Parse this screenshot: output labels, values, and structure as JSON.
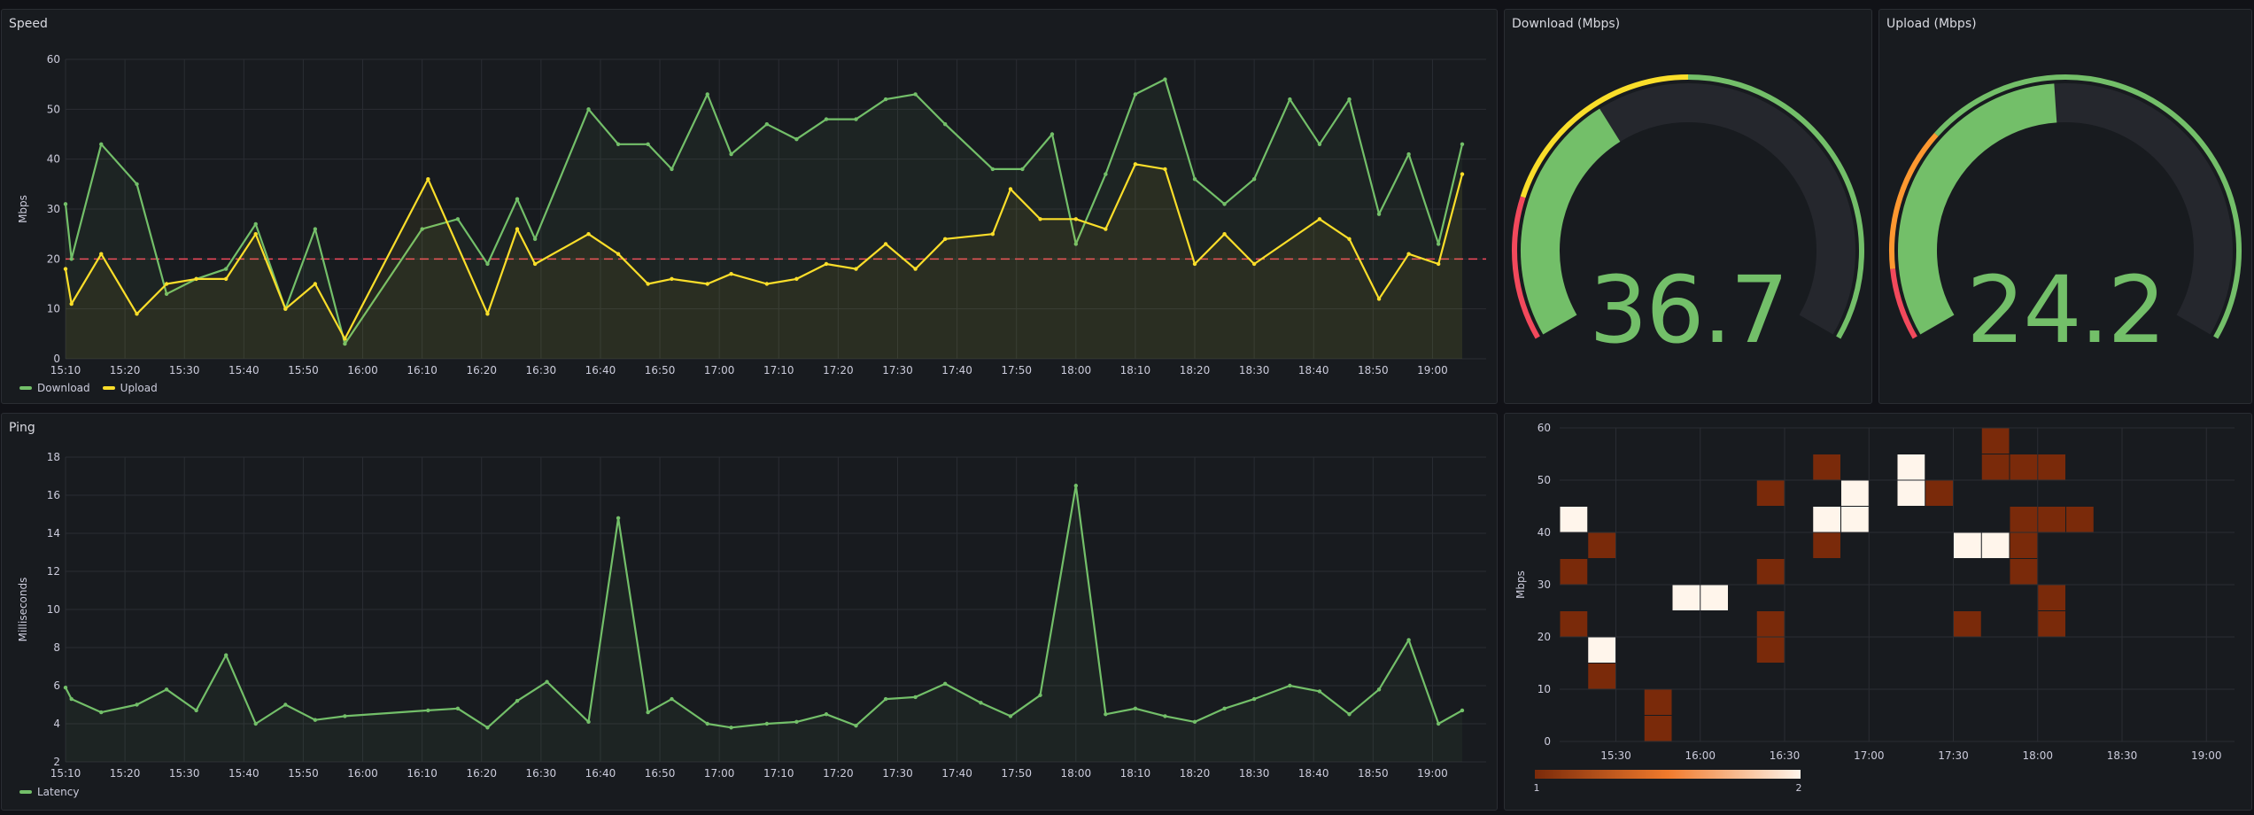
{
  "colors": {
    "download": "#73bf69",
    "upload": "#fade2a",
    "latency": "#73bf69",
    "threshold": "#f2495c",
    "gauge_red": "#f2495c",
    "gauge_yellow": "#fade2a",
    "gauge_orange": "#ff9830",
    "gauge_green": "#73bf69",
    "gauge_track": "#25272d",
    "grid": "#2a2d33",
    "axis_text": "#ccccdc"
  },
  "panels": {
    "speed": {
      "title": "Speed",
      "ylabel": "Mbps",
      "legend": [
        {
          "name": "Download",
          "color": "#73bf69"
        },
        {
          "name": "Upload",
          "color": "#fade2a"
        }
      ]
    },
    "download_gauge": {
      "title": "Download (Mbps)",
      "value": "36.7"
    },
    "upload_gauge": {
      "title": "Upload (Mbps)",
      "value": "24.2"
    },
    "ping": {
      "title": "Ping",
      "ylabel": "Milliseconds",
      "legend": [
        {
          "name": "Latency",
          "color": "#73bf69"
        }
      ]
    },
    "heatmap": {
      "title": "",
      "ylabel": "Mbps",
      "scale_min": "1",
      "scale_max": "2"
    }
  },
  "chart_data": [
    {
      "id": "speed",
      "type": "line",
      "title": "Speed",
      "ylabel": "Mbps",
      "ylim": [
        0,
        60
      ],
      "yticks": [
        0,
        10,
        20,
        30,
        40,
        50,
        60
      ],
      "xlim": [
        "15:10",
        "19:05"
      ],
      "xticks": [
        "15:10",
        "15:20",
        "15:30",
        "15:40",
        "15:50",
        "16:00",
        "16:10",
        "16:20",
        "16:30",
        "16:40",
        "16:50",
        "17:00",
        "17:10",
        "17:20",
        "17:30",
        "17:40",
        "17:50",
        "18:00",
        "18:10",
        "18:20",
        "18:30",
        "18:40",
        "18:50",
        "19:00"
      ],
      "threshold": 20,
      "series": [
        {
          "name": "Download",
          "x": [
            "15:10",
            "15:11",
            "15:16",
            "15:22",
            "15:27",
            "15:32",
            "15:37",
            "15:42",
            "15:47",
            "15:52",
            "15:57",
            "16:10",
            "16:16",
            "16:21",
            "16:26",
            "16:29",
            "16:38",
            "16:43",
            "16:48",
            "16:52",
            "16:58",
            "17:02",
            "17:08",
            "17:13",
            "17:18",
            "17:23",
            "17:28",
            "17:33",
            "17:38",
            "17:46",
            "17:51",
            "17:56",
            "18:00",
            "18:05",
            "18:10",
            "18:15",
            "18:20",
            "18:25",
            "18:30",
            "18:36",
            "18:41",
            "18:46",
            "18:51",
            "18:56",
            "19:01",
            "19:05"
          ],
          "y": [
            31,
            20,
            43,
            35,
            13,
            16,
            18,
            27,
            10,
            26,
            3,
            26,
            28,
            19,
            32,
            24,
            50,
            43,
            43,
            38,
            53,
            41,
            47,
            44,
            48,
            48,
            52,
            53,
            47,
            38,
            38,
            45,
            23,
            37,
            53,
            56,
            36,
            31,
            36,
            52,
            43,
            52,
            29,
            41,
            23,
            43
          ]
        },
        {
          "name": "Upload",
          "x": [
            "15:10",
            "15:11",
            "15:16",
            "15:22",
            "15:27",
            "15:32",
            "15:37",
            "15:42",
            "15:47",
            "15:52",
            "15:57",
            "16:11",
            "16:21",
            "16:26",
            "16:29",
            "16:38",
            "16:43",
            "16:48",
            "16:52",
            "16:58",
            "17:02",
            "17:08",
            "17:13",
            "17:18",
            "17:23",
            "17:28",
            "17:33",
            "17:38",
            "17:46",
            "17:49",
            "17:54",
            "18:00",
            "18:05",
            "18:10",
            "18:15",
            "18:20",
            "18:25",
            "18:30",
            "18:41",
            "18:46",
            "18:51",
            "18:56",
            "19:01",
            "19:05"
          ],
          "y": [
            18,
            11,
            21,
            9,
            15,
            16,
            16,
            25,
            10,
            15,
            4,
            36,
            9,
            26,
            19,
            25,
            21,
            15,
            16,
            15,
            17,
            15,
            16,
            19,
            18,
            23,
            18,
            24,
            25,
            34,
            28,
            28,
            26,
            39,
            38,
            19,
            25,
            19,
            28,
            24,
            12,
            21,
            19,
            37
          ]
        }
      ]
    },
    {
      "id": "download_gauge",
      "type": "gauge",
      "title": "Download (Mbps)",
      "value": 36.7,
      "min": 0,
      "max": 100,
      "thresholds": [
        {
          "value": 0,
          "color": "#f2495c"
        },
        {
          "value": 20,
          "color": "#fade2a"
        },
        {
          "value": 50,
          "color": "#73bf69"
        }
      ]
    },
    {
      "id": "upload_gauge",
      "type": "gauge",
      "title": "Upload (Mbps)",
      "value": 24.2,
      "min": 0,
      "max": 50,
      "thresholds": [
        {
          "value": 0,
          "color": "#f2495c"
        },
        {
          "value": 5,
          "color": "#ff9830"
        },
        {
          "value": 15,
          "color": "#73bf69"
        }
      ]
    },
    {
      "id": "ping",
      "type": "line",
      "title": "Ping",
      "ylabel": "Milliseconds",
      "ylim": [
        2,
        18
      ],
      "yticks": [
        2,
        4,
        6,
        8,
        10,
        12,
        14,
        16,
        18
      ],
      "xlim": [
        "15:10",
        "19:05"
      ],
      "xticks": [
        "15:10",
        "15:20",
        "15:30",
        "15:40",
        "15:50",
        "16:00",
        "16:10",
        "16:20",
        "16:30",
        "16:40",
        "16:50",
        "17:00",
        "17:10",
        "17:20",
        "17:30",
        "17:40",
        "17:50",
        "18:00",
        "18:10",
        "18:20",
        "18:30",
        "18:40",
        "18:50",
        "19:00"
      ],
      "series": [
        {
          "name": "Latency",
          "x": [
            "15:10",
            "15:11",
            "15:16",
            "15:22",
            "15:27",
            "15:32",
            "15:37",
            "15:42",
            "15:47",
            "15:52",
            "15:57",
            "16:11",
            "16:16",
            "16:21",
            "16:26",
            "16:31",
            "16:38",
            "16:43",
            "16:48",
            "16:52",
            "16:58",
            "17:02",
            "17:08",
            "17:13",
            "17:18",
            "17:23",
            "17:28",
            "17:33",
            "17:38",
            "17:44",
            "17:49",
            "17:54",
            "18:00",
            "18:05",
            "18:10",
            "18:15",
            "18:20",
            "18:25",
            "18:30",
            "18:36",
            "18:41",
            "18:46",
            "18:51",
            "18:56",
            "19:01",
            "19:05"
          ],
          "y": [
            5.9,
            5.3,
            4.6,
            5.0,
            5.8,
            4.7,
            7.6,
            4.0,
            5.0,
            4.2,
            4.4,
            4.7,
            4.8,
            3.8,
            5.2,
            6.2,
            4.1,
            14.8,
            4.6,
            5.3,
            4.0,
            3.8,
            4.0,
            4.1,
            4.5,
            3.9,
            5.3,
            5.4,
            6.1,
            5.1,
            4.4,
            5.5,
            16.5,
            4.5,
            4.8,
            4.4,
            4.1,
            4.8,
            5.3,
            6.0,
            5.7,
            4.5,
            5.8,
            8.4,
            4.0,
            4.7
          ]
        }
      ]
    },
    {
      "id": "heatmap",
      "type": "heatmap",
      "ylabel": "Mbps",
      "ylim": [
        0,
        60
      ],
      "yticks": [
        0,
        10,
        20,
        30,
        40,
        50,
        60
      ],
      "xticks": [
        "15:30",
        "16:00",
        "16:30",
        "17:00",
        "17:30",
        "18:00",
        "18:30",
        "19:00"
      ],
      "xlim": [
        "15:10",
        "19:10"
      ],
      "bucket_minutes": 10,
      "bucket_mbps": 5,
      "color_scale": {
        "min": 1,
        "max": 2,
        "min_color": "#7a2a0a",
        "max_color": "#fff5eb"
      },
      "cells": [
        {
          "x": "15:10",
          "y": 40,
          "count": 2
        },
        {
          "x": "15:10",
          "y": 30,
          "count": 1
        },
        {
          "x": "15:10",
          "y": 20,
          "count": 1
        },
        {
          "x": "15:20",
          "y": 35,
          "count": 1
        },
        {
          "x": "15:20",
          "y": 15,
          "count": 2
        },
        {
          "x": "15:20",
          "y": 10,
          "count": 1
        },
        {
          "x": "15:40",
          "y": 5,
          "count": 1
        },
        {
          "x": "15:40",
          "y": 0,
          "count": 1
        },
        {
          "x": "15:50",
          "y": 25,
          "count": 2
        },
        {
          "x": "16:00",
          "y": 25,
          "count": 2
        },
        {
          "x": "16:20",
          "y": 45,
          "count": 1
        },
        {
          "x": "16:20",
          "y": 30,
          "count": 1
        },
        {
          "x": "16:20",
          "y": 20,
          "count": 1
        },
        {
          "x": "16:20",
          "y": 15,
          "count": 1
        },
        {
          "x": "16:40",
          "y": 50,
          "count": 1
        },
        {
          "x": "16:40",
          "y": 40,
          "count": 2
        },
        {
          "x": "16:40",
          "y": 35,
          "count": 1
        },
        {
          "x": "16:50",
          "y": 45,
          "count": 2
        },
        {
          "x": "16:50",
          "y": 40,
          "count": 2
        },
        {
          "x": "17:10",
          "y": 50,
          "count": 2
        },
        {
          "x": "17:10",
          "y": 45,
          "count": 2
        },
        {
          "x": "17:20",
          "y": 45,
          "count": 1
        },
        {
          "x": "17:30",
          "y": 35,
          "count": 2
        },
        {
          "x": "17:30",
          "y": 20,
          "count": 1
        },
        {
          "x": "17:40",
          "y": 55,
          "count": 1
        },
        {
          "x": "17:40",
          "y": 50,
          "count": 1
        },
        {
          "x": "17:40",
          "y": 35,
          "count": 2
        },
        {
          "x": "17:50",
          "y": 50,
          "count": 1
        },
        {
          "x": "17:50",
          "y": 40,
          "count": 1
        },
        {
          "x": "17:50",
          "y": 35,
          "count": 1
        },
        {
          "x": "17:50",
          "y": 30,
          "count": 1
        },
        {
          "x": "18:00",
          "y": 50,
          "count": 1
        },
        {
          "x": "18:00",
          "y": 40,
          "count": 1
        },
        {
          "x": "18:00",
          "y": 25,
          "count": 1
        },
        {
          "x": "18:00",
          "y": 20,
          "count": 1
        },
        {
          "x": "18:10",
          "y": 40,
          "count": 1
        }
      ]
    }
  ]
}
